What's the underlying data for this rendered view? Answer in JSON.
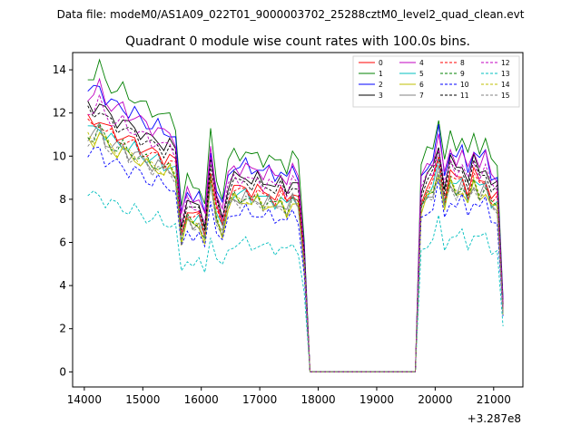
{
  "chart_data": {
    "type": "line",
    "suptitle": "Data file: modeM0/AS1A09_022T01_9000003702_25288cztM0_level2_quad_clean.evt",
    "title": "Quadrant 0 module wise count rates with 100.0s bins.",
    "xlabel": "",
    "ylabel": "",
    "x_offset_label": "+3.287e8",
    "xlim": [
      13800,
      21500
    ],
    "ylim": [
      -0.7,
      14.8
    ],
    "xticks": [
      14000,
      15000,
      16000,
      17000,
      18000,
      19000,
      20000,
      21000
    ],
    "xtick_labels": [
      "14000",
      "15000",
      "16000",
      "17000",
      "18000",
      "19000",
      "20000",
      "21000"
    ],
    "yticks": [
      0,
      2,
      4,
      6,
      8,
      10,
      12,
      14
    ],
    "ytick_labels": [
      "0",
      "2",
      "4",
      "6",
      "8",
      "10",
      "12",
      "14"
    ],
    "legend": {
      "position": "top-right",
      "ncol": 4
    },
    "x": [
      14060,
      14160,
      14260,
      14360,
      14460,
      14560,
      14660,
      14760,
      14860,
      14960,
      15060,
      15160,
      15260,
      15360,
      15460,
      15560,
      15660,
      15760,
      15860,
      15960,
      16060,
      16160,
      16260,
      16360,
      16460,
      16560,
      16660,
      16760,
      16860,
      16960,
      17060,
      17160,
      17260,
      17360,
      17460,
      17560,
      17660,
      17760,
      17860,
      17960,
      18060,
      18160,
      18260,
      18360,
      18460,
      18560,
      18660,
      18760,
      18860,
      18960,
      19060,
      19160,
      19260,
      19360,
      19460,
      19560,
      19660,
      19760,
      19860,
      19960,
      20060,
      20160,
      20260,
      20360,
      20460,
      20560,
      20660,
      20760,
      20860,
      20960,
      21060,
      21160
    ],
    "profile": [
      1.0,
      0.995,
      1.025,
      0.975,
      0.96,
      0.945,
      0.95,
      0.92,
      0.925,
      0.9,
      0.89,
      0.87,
      0.88,
      0.85,
      0.86,
      0.83,
      0.56,
      0.65,
      0.62,
      0.63,
      0.56,
      0.8,
      0.65,
      0.59,
      0.7,
      0.74,
      0.725,
      0.745,
      0.715,
      0.735,
      0.705,
      0.725,
      0.695,
      0.72,
      0.68,
      0.73,
      0.7,
      0.45,
      0.0,
      0.0,
      0.0,
      0.0,
      0.0,
      0.0,
      0.0,
      0.0,
      0.0,
      0.0,
      0.0,
      0.0,
      0.0,
      0.0,
      0.0,
      0.0,
      0.0,
      0.0,
      0.0,
      0.69,
      0.74,
      0.76,
      0.86,
      0.7,
      0.8,
      0.76,
      0.79,
      0.72,
      0.8,
      0.75,
      0.78,
      0.7,
      0.7,
      0.25
    ],
    "series": [
      {
        "name": "0",
        "scale": 11.6,
        "color": "#ff0000",
        "dash": "solid"
      },
      {
        "name": "1",
        "scale": 13.8,
        "color": "#008000",
        "dash": "solid"
      },
      {
        "name": "2",
        "scale": 13.0,
        "color": "#0000ff",
        "dash": "solid"
      },
      {
        "name": "3",
        "scale": 12.3,
        "color": "#000000",
        "dash": "solid"
      },
      {
        "name": "4",
        "scale": 12.9,
        "color": "#c000c0",
        "dash": "solid"
      },
      {
        "name": "5",
        "scale": 11.2,
        "color": "#00bfbf",
        "dash": "solid"
      },
      {
        "name": "6",
        "scale": 10.8,
        "color": "#bfbf00",
        "dash": "solid"
      },
      {
        "name": "7",
        "scale": 11.0,
        "color": "#808080",
        "dash": "solid"
      },
      {
        "name": "8",
        "scale": 11.4,
        "color": "#ff0000",
        "dash": "dashed"
      },
      {
        "name": "9",
        "scale": 11.0,
        "color": "#008000",
        "dash": "dashed"
      },
      {
        "name": "10",
        "scale": 10.1,
        "color": "#0000ff",
        "dash": "dashed"
      },
      {
        "name": "11",
        "scale": 12.0,
        "color": "#000000",
        "dash": "dashed"
      },
      {
        "name": "12",
        "scale": 12.2,
        "color": "#c000c0",
        "dash": "dashed"
      },
      {
        "name": "13",
        "scale": 8.1,
        "color": "#00bfbf",
        "dash": "dashed"
      },
      {
        "name": "14",
        "scale": 10.9,
        "color": "#bfbf00",
        "dash": "dashed"
      },
      {
        "name": "15",
        "scale": 10.8,
        "color": "#808080",
        "dash": "dashed"
      }
    ]
  }
}
